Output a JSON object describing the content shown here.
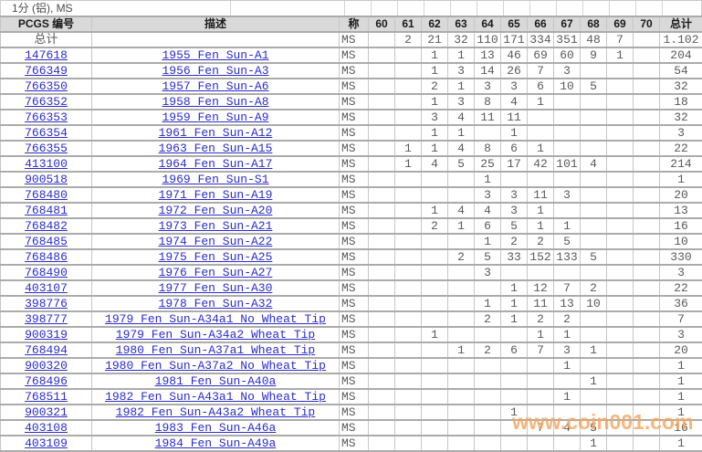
{
  "title": "1分 (铝), MS",
  "watermark": "www.coin001.com",
  "colors": {
    "link_blue": "#2b2bcc",
    "header_bg": "#d9d9d9",
    "grid_line_dark": "#ababab",
    "grid_line_light": "#c6c6c6",
    "number_gray": "#5a5a5a",
    "watermark_orange": "#f6a55e"
  },
  "table": {
    "headers": {
      "id": "PCGS 编号",
      "description": "描述",
      "designation": "称",
      "total": "总计"
    },
    "grade_columns": [
      "60",
      "61",
      "62",
      "63",
      "64",
      "65",
      "66",
      "67",
      "68",
      "69",
      "70"
    ],
    "total_row": {
      "label": "总计",
      "designation": "MS",
      "grades": [
        "",
        "2",
        "21",
        "32",
        "110",
        "171",
        "334",
        "351",
        "48",
        "7",
        ""
      ],
      "total": "1.102"
    },
    "rows": [
      {
        "id": "147618",
        "description": "1955 Fen Sun-A1",
        "designation": "MS",
        "grades": [
          "",
          "",
          "1",
          "1",
          "13",
          "46",
          "69",
          "60",
          "9",
          "1",
          ""
        ],
        "total": "204"
      },
      {
        "id": "766349",
        "description": "1956 Fen Sun-A3",
        "designation": "MS",
        "grades": [
          "",
          "",
          "1",
          "3",
          "14",
          "26",
          "7",
          "3",
          "",
          "",
          ""
        ],
        "total": "54"
      },
      {
        "id": "766350",
        "description": "1957 Fen Sun-A6",
        "designation": "MS",
        "grades": [
          "",
          "",
          "2",
          "1",
          "3",
          "3",
          "6",
          "10",
          "5",
          "",
          ""
        ],
        "total": "32"
      },
      {
        "id": "766352",
        "description": "1958 Fen Sun-A8",
        "designation": "MS",
        "grades": [
          "",
          "",
          "1",
          "3",
          "8",
          "4",
          "1",
          "",
          "",
          "",
          ""
        ],
        "total": "18"
      },
      {
        "id": "766353",
        "description": "1959 Fen Sun-A9",
        "designation": "MS",
        "grades": [
          "",
          "",
          "3",
          "4",
          "11",
          "11",
          "",
          "",
          "",
          "",
          ""
        ],
        "total": "32"
      },
      {
        "id": "766354",
        "description": "1961 Fen Sun-A12",
        "designation": "MS",
        "grades": [
          "",
          "",
          "1",
          "1",
          "",
          "1",
          "",
          "",
          "",
          "",
          ""
        ],
        "total": "3"
      },
      {
        "id": "766355",
        "description": "1963 Fen Sun-A15",
        "designation": "MS",
        "grades": [
          "",
          "1",
          "1",
          "4",
          "8",
          "6",
          "1",
          "",
          "",
          "",
          ""
        ],
        "total": "22"
      },
      {
        "id": "413100",
        "description": "1964 Fen Sun-A17",
        "designation": "MS",
        "grades": [
          "",
          "1",
          "4",
          "5",
          "25",
          "17",
          "42",
          "101",
          "4",
          "",
          ""
        ],
        "total": "214"
      },
      {
        "id": "900518",
        "description": "1969 Fen Sun-S1",
        "designation": "MS",
        "grades": [
          "",
          "",
          "",
          "",
          "1",
          "",
          "",
          "",
          "",
          "",
          ""
        ],
        "total": "1"
      },
      {
        "id": "768480",
        "description": "1971 Fen Sun-A19",
        "designation": "MS",
        "grades": [
          "",
          "",
          "",
          "",
          "3",
          "3",
          "11",
          "3",
          "",
          "",
          ""
        ],
        "total": "20"
      },
      {
        "id": "768481",
        "description": "1972 Fen Sun-A20",
        "designation": "MS",
        "grades": [
          "",
          "",
          "1",
          "4",
          "4",
          "3",
          "1",
          "",
          "",
          "",
          ""
        ],
        "total": "13"
      },
      {
        "id": "768482",
        "description": "1973 Fen Sun-A21",
        "designation": "MS",
        "grades": [
          "",
          "",
          "2",
          "1",
          "6",
          "5",
          "1",
          "1",
          "",
          "",
          ""
        ],
        "total": "16"
      },
      {
        "id": "768485",
        "description": "1974 Fen Sun-A22",
        "designation": "MS",
        "grades": [
          "",
          "",
          "",
          "",
          "1",
          "2",
          "2",
          "5",
          "",
          "",
          ""
        ],
        "total": "10"
      },
      {
        "id": "768486",
        "description": "1975 Fen Sun-A25",
        "designation": "MS",
        "grades": [
          "",
          "",
          "",
          "2",
          "5",
          "33",
          "152",
          "133",
          "5",
          "",
          ""
        ],
        "total": "330"
      },
      {
        "id": "768490",
        "description": "1976 Fen Sun-A27",
        "designation": "MS",
        "grades": [
          "",
          "",
          "",
          "",
          "3",
          "",
          "",
          "",
          "",
          "",
          ""
        ],
        "total": "3"
      },
      {
        "id": "403107",
        "description": "1977 Fen Sun-A30",
        "designation": "MS",
        "grades": [
          "",
          "",
          "",
          "",
          "",
          "1",
          "12",
          "7",
          "2",
          "",
          ""
        ],
        "total": "22"
      },
      {
        "id": "398776",
        "description": "1978 Fen Sun-A32",
        "designation": "MS",
        "grades": [
          "",
          "",
          "",
          "",
          "1",
          "1",
          "11",
          "13",
          "10",
          "",
          ""
        ],
        "total": "36"
      },
      {
        "id": "398777",
        "description": "1979 Fen Sun-A34a1 No Wheat Tip",
        "designation": "MS",
        "grades": [
          "",
          "",
          "",
          "",
          "2",
          "1",
          "2",
          "2",
          "",
          "",
          ""
        ],
        "total": "7"
      },
      {
        "id": "900319",
        "description": "1979 Fen Sun-A34a2 Wheat Tip",
        "designation": "MS",
        "grades": [
          "",
          "",
          "1",
          "",
          "",
          "",
          "1",
          "1",
          "",
          "",
          ""
        ],
        "total": "3"
      },
      {
        "id": "768494",
        "description": "1980 Fen Sun-A37a1 Wheat Tip",
        "designation": "MS",
        "grades": [
          "",
          "",
          "",
          "1",
          "2",
          "6",
          "7",
          "3",
          "1",
          "",
          ""
        ],
        "total": "20"
      },
      {
        "id": "900320",
        "description": "1980 Fen Sun-A37a2 No Wheat Tip",
        "designation": "MS",
        "grades": [
          "",
          "",
          "",
          "",
          "",
          "",
          "",
          "1",
          "",
          "",
          ""
        ],
        "total": "1"
      },
      {
        "id": "768496",
        "description": "1981 Fen Sun-A40a",
        "designation": "MS",
        "grades": [
          "",
          "",
          "",
          "",
          "",
          "",
          "",
          "",
          "1",
          "",
          ""
        ],
        "total": "1"
      },
      {
        "id": "768511",
        "description": "1982 Fen Sun-A43a1 No Wheat Tip",
        "designation": "MS",
        "grades": [
          "",
          "",
          "",
          "",
          "",
          "",
          "",
          "1",
          "",
          "",
          ""
        ],
        "total": "1"
      },
      {
        "id": "900321",
        "description": "1982 Fen Sun-A43a2 Wheat Tip",
        "designation": "MS",
        "grades": [
          "",
          "",
          "",
          "",
          "",
          "1",
          "",
          "",
          "",
          "",
          ""
        ],
        "total": "1"
      },
      {
        "id": "403108",
        "description": "1983 Fen Sun-A46a",
        "designation": "MS",
        "grades": [
          "",
          "",
          "",
          "",
          "",
          "",
          "7",
          "4",
          "5",
          "",
          ""
        ],
        "total": "16"
      },
      {
        "id": "403109",
        "description": "1984 Fen Sun-A49a",
        "designation": "MS",
        "grades": [
          "",
          "",
          "",
          "",
          "",
          "",
          "",
          "",
          "1",
          "",
          ""
        ],
        "total": "1"
      }
    ]
  }
}
